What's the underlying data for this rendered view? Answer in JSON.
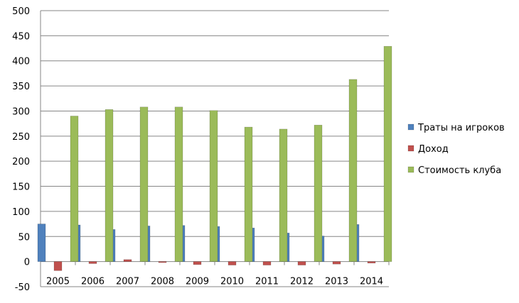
{
  "chart_data": {
    "type": "bar",
    "categories": [
      "2005",
      "2006",
      "2007",
      "2008",
      "2009",
      "2010",
      "2011",
      "2012",
      "2013",
      "2014"
    ],
    "series": [
      {
        "name": "Траты на игроков",
        "color": "#4F81BD",
        "values": [
          75,
          73,
          64,
          71,
          72,
          70,
          67,
          57,
          51,
          74
        ]
      },
      {
        "name": "Доход",
        "color": "#C0504D",
        "values": [
          -18,
          -4,
          4,
          -2,
          -6,
          -7,
          -7,
          -7,
          -5,
          -3
        ]
      },
      {
        "name": "Стоимость клуба",
        "color": "#9BBB59",
        "values": [
          290,
          303,
          308,
          308,
          301,
          268,
          264,
          272,
          363,
          429
        ]
      }
    ],
    "ylim": [
      -50,
      500
    ],
    "yticks": [
      "-50",
      "0",
      "50",
      "100",
      "150",
      "200",
      "250",
      "300",
      "350",
      "400",
      "450",
      "500"
    ],
    "grid": true,
    "legend_position": "right"
  }
}
